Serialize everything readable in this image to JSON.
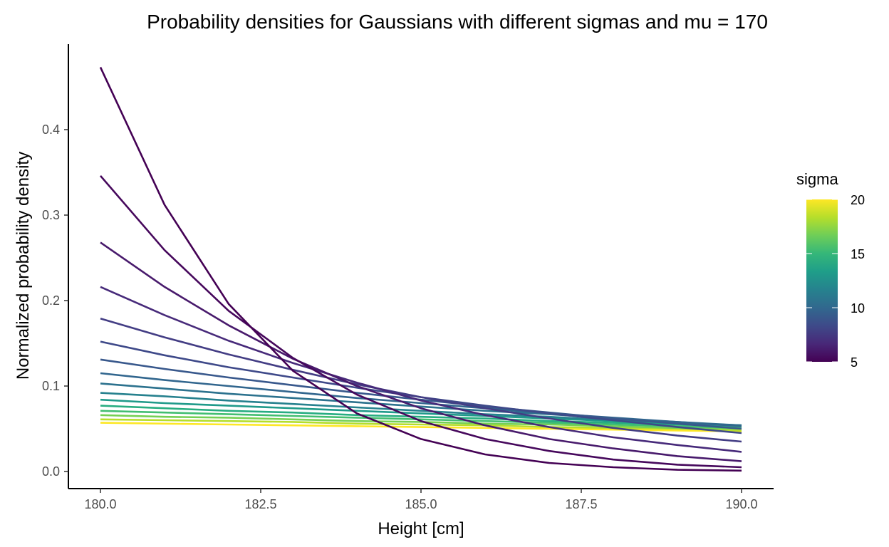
{
  "chart_data": {
    "type": "line",
    "title": "Probability densities for Gaussians with different sigmas and mu = 170",
    "xlabel": "Height [cm]",
    "ylabel": "Normalized probability density",
    "x": [
      180,
      181,
      182,
      183,
      184,
      185,
      186,
      187,
      188,
      189,
      190
    ],
    "xlim": [
      179.5,
      190.5
    ],
    "ylim": [
      -0.02,
      0.5
    ],
    "x_ticks": [
      180.0,
      182.5,
      185.0,
      187.5,
      190.0
    ],
    "x_tick_labels": [
      "180.0",
      "182.5",
      "185.0",
      "187.5",
      "190.0"
    ],
    "y_ticks": [
      0.0,
      0.1,
      0.2,
      0.3,
      0.4
    ],
    "y_tick_labels": [
      "0.0",
      "0.1",
      "0.2",
      "0.3",
      "0.4"
    ],
    "grid": false,
    "legend": {
      "title": "sigma",
      "type": "colorbar",
      "position": "right",
      "range": [
        5,
        20
      ],
      "ticks": [
        5,
        10,
        15,
        20
      ],
      "tick_labels": [
        "5",
        "10",
        "15",
        "20"
      ],
      "palette": [
        "#440154",
        "#482878",
        "#3e4a89",
        "#31688e",
        "#26828e",
        "#1f9e89",
        "#35b779",
        "#6ece58",
        "#b5de2b",
        "#fde725"
      ]
    },
    "series": [
      {
        "sigma": 5,
        "color": "#440154",
        "values": [
          0.473,
          0.312,
          0.196,
          0.118,
          0.068,
          0.038,
          0.02,
          0.01,
          0.005,
          0.002,
          0.001
        ]
      },
      {
        "sigma": 6,
        "color": "#46085c",
        "values": [
          0.346,
          0.259,
          0.188,
          0.133,
          0.09,
          0.059,
          0.038,
          0.024,
          0.014,
          0.008,
          0.005
        ]
      },
      {
        "sigma": 7,
        "color": "#481a6c",
        "values": [
          0.268,
          0.216,
          0.171,
          0.132,
          0.1,
          0.074,
          0.054,
          0.038,
          0.027,
          0.018,
          0.012
        ]
      },
      {
        "sigma": 8,
        "color": "#472a7a",
        "values": [
          0.216,
          0.183,
          0.153,
          0.127,
          0.104,
          0.083,
          0.066,
          0.052,
          0.04,
          0.031,
          0.023
        ]
      },
      {
        "sigma": 9,
        "color": "#433d84",
        "values": [
          0.179,
          0.157,
          0.137,
          0.119,
          0.102,
          0.087,
          0.074,
          0.062,
          0.051,
          0.042,
          0.035
        ]
      },
      {
        "sigma": 10,
        "color": "#3e4989",
        "values": [
          0.152,
          0.136,
          0.122,
          0.11,
          0.098,
          0.087,
          0.077,
          0.068,
          0.06,
          0.052,
          0.045
        ]
      },
      {
        "sigma": 11,
        "color": "#38588c",
        "values": [
          0.131,
          0.12,
          0.11,
          0.101,
          0.092,
          0.084,
          0.076,
          0.069,
          0.062,
          0.056,
          0.05
        ]
      },
      {
        "sigma": 12,
        "color": "#31668e",
        "values": [
          0.115,
          0.107,
          0.1,
          0.093,
          0.086,
          0.08,
          0.074,
          0.068,
          0.063,
          0.058,
          0.053
        ]
      },
      {
        "sigma": 13,
        "color": "#2c728e",
        "values": [
          0.103,
          0.097,
          0.091,
          0.086,
          0.081,
          0.076,
          0.071,
          0.067,
          0.062,
          0.058,
          0.054
        ]
      },
      {
        "sigma": 14,
        "color": "#26818e",
        "values": [
          0.092,
          0.088,
          0.083,
          0.079,
          0.075,
          0.071,
          0.067,
          0.064,
          0.06,
          0.057,
          0.054
        ]
      },
      {
        "sigma": 15,
        "color": "#1f9a8a",
        "values": [
          0.084,
          0.08,
          0.077,
          0.074,
          0.071,
          0.068,
          0.065,
          0.062,
          0.059,
          0.056,
          0.054
        ]
      },
      {
        "sigma": 16,
        "color": "#27ad81",
        "values": [
          0.077,
          0.074,
          0.071,
          0.069,
          0.066,
          0.064,
          0.062,
          0.059,
          0.057,
          0.055,
          0.053
        ]
      },
      {
        "sigma": 17,
        "color": "#42be71",
        "values": [
          0.071,
          0.069,
          0.067,
          0.065,
          0.063,
          0.061,
          0.059,
          0.057,
          0.055,
          0.053,
          0.051
        ]
      },
      {
        "sigma": 18,
        "color": "#75d054",
        "values": [
          0.066,
          0.064,
          0.063,
          0.061,
          0.059,
          0.058,
          0.056,
          0.055,
          0.053,
          0.051,
          0.05
        ]
      },
      {
        "sigma": 19,
        "color": "#b5de2b",
        "values": [
          0.061,
          0.06,
          0.059,
          0.058,
          0.056,
          0.055,
          0.054,
          0.052,
          0.051,
          0.05,
          0.048
        ]
      },
      {
        "sigma": 20,
        "color": "#fde725",
        "values": [
          0.057,
          0.056,
          0.055,
          0.054,
          0.053,
          0.052,
          0.051,
          0.05,
          0.049,
          0.048,
          0.047
        ]
      }
    ]
  }
}
